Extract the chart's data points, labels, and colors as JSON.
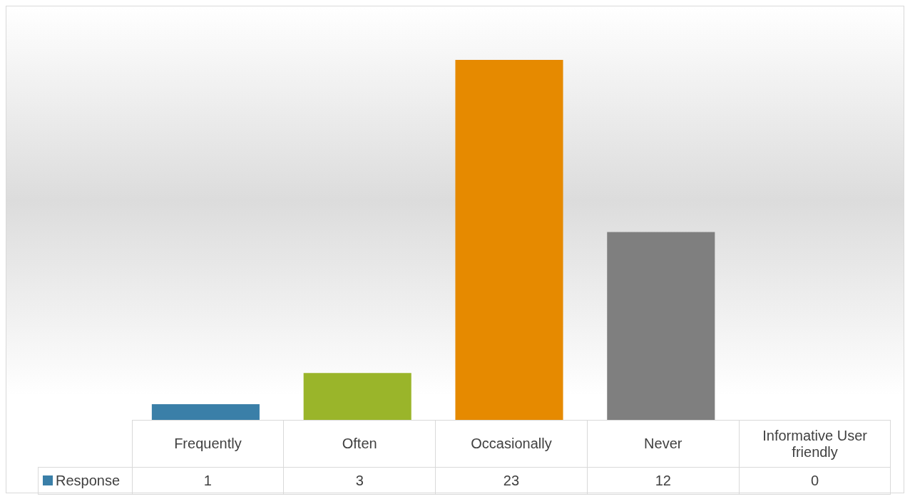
{
  "chart_data": {
    "type": "bar",
    "categories": [
      "Frequently",
      "Often",
      "Occasionally",
      "Never",
      "Informative User friendly"
    ],
    "series": [
      {
        "name": "Response",
        "color": "#3a7fa8",
        "colors": [
          "#3a7fa8",
          "#9ab52a",
          "#e68a00",
          "#7f7f7f",
          "#4bacc6"
        ],
        "values": [
          1,
          3,
          23,
          12,
          0
        ]
      }
    ],
    "data_labels": true,
    "legend": "bottom left"
  }
}
